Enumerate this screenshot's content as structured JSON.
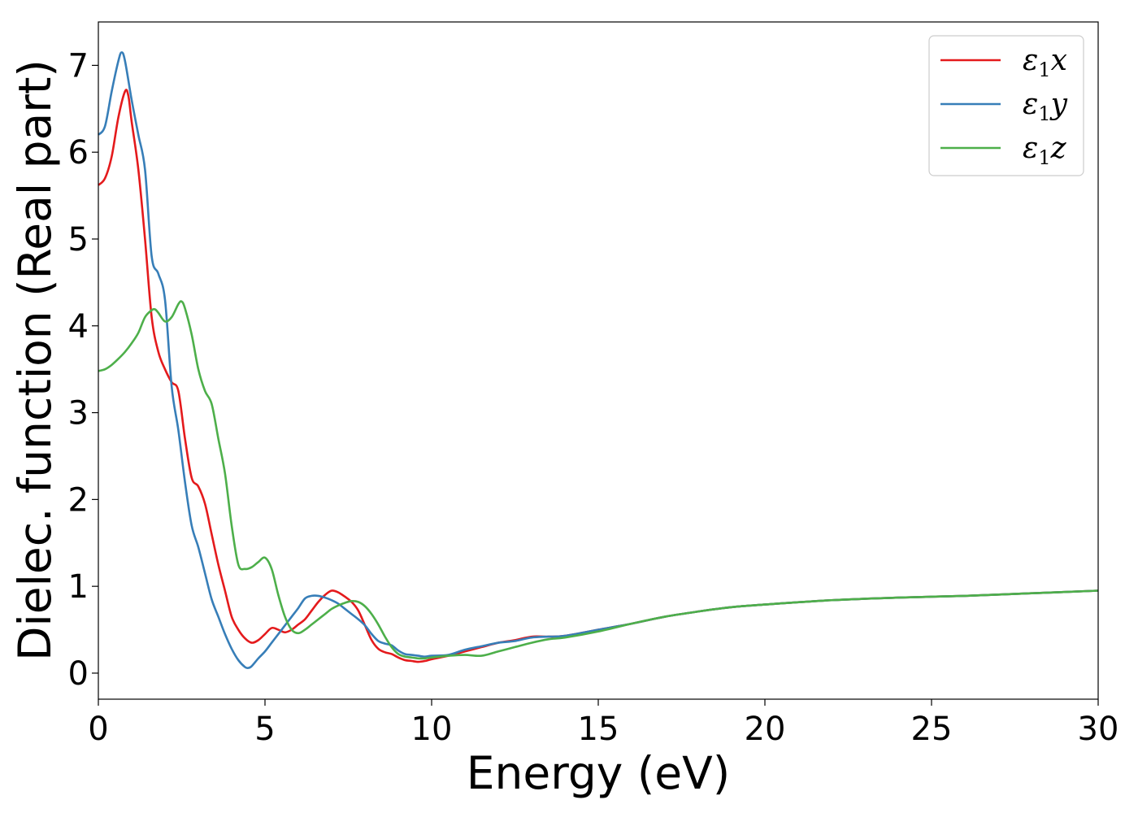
{
  "chart_data": {
    "type": "line",
    "title": "",
    "xlabel": "Energy (eV)",
    "ylabel": "Dielec. function (Real part)",
    "xlim": [
      0,
      30
    ],
    "ylim": [
      -0.3,
      7.5
    ],
    "xticks": [
      0,
      5,
      10,
      15,
      20,
      25,
      30
    ],
    "xtick_labels": [
      "0",
      "5",
      "10",
      "15",
      "20",
      "25",
      "30"
    ],
    "yticks": [
      0,
      1,
      2,
      3,
      4,
      5,
      6,
      7
    ],
    "ytick_labels": [
      "0",
      "1",
      "2",
      "3",
      "4",
      "5",
      "6",
      "7"
    ],
    "grid": false,
    "legend_position": "top-right",
    "series": [
      {
        "name": "ε1x",
        "symbol": "ε",
        "sub": "1",
        "axis": "x",
        "color": "#e41a1c",
        "x": [
          0,
          0.2,
          0.4,
          0.6,
          0.8,
          0.9,
          1.0,
          1.2,
          1.4,
          1.6,
          1.8,
          2.0,
          2.2,
          2.4,
          2.6,
          2.8,
          3.0,
          3.2,
          3.4,
          3.6,
          3.8,
          4.0,
          4.2,
          4.4,
          4.6,
          4.8,
          5.0,
          5.2,
          5.4,
          5.6,
          5.8,
          6.0,
          6.2,
          6.4,
          6.6,
          6.8,
          7.0,
          7.2,
          7.4,
          7.6,
          7.8,
          8.0,
          8.2,
          8.4,
          8.6,
          8.8,
          9.0,
          9.2,
          9.4,
          9.6,
          9.8,
          10,
          10.5,
          11,
          11.5,
          12,
          12.5,
          13,
          13.5,
          14,
          15,
          16,
          17,
          18,
          19,
          20,
          22,
          24,
          26,
          28,
          30
        ],
        "y": [
          5.62,
          5.7,
          5.95,
          6.4,
          6.7,
          6.65,
          6.35,
          5.8,
          5.0,
          4.1,
          3.7,
          3.5,
          3.35,
          3.25,
          2.7,
          2.25,
          2.15,
          1.95,
          1.6,
          1.25,
          0.95,
          0.65,
          0.5,
          0.4,
          0.35,
          0.38,
          0.45,
          0.52,
          0.5,
          0.47,
          0.5,
          0.56,
          0.62,
          0.72,
          0.82,
          0.9,
          0.95,
          0.93,
          0.88,
          0.82,
          0.72,
          0.55,
          0.38,
          0.28,
          0.24,
          0.22,
          0.18,
          0.15,
          0.14,
          0.13,
          0.14,
          0.16,
          0.2,
          0.25,
          0.3,
          0.35,
          0.38,
          0.42,
          0.42,
          0.43,
          0.5,
          0.57,
          0.65,
          0.71,
          0.76,
          0.79,
          0.84,
          0.87,
          0.89,
          0.92,
          0.95
        ]
      },
      {
        "name": "ε1y",
        "symbol": "ε",
        "sub": "1",
        "axis": "y",
        "color": "#377eb8",
        "x": [
          0,
          0.2,
          0.4,
          0.6,
          0.7,
          0.8,
          1.0,
          1.2,
          1.4,
          1.6,
          1.8,
          2.0,
          2.2,
          2.4,
          2.6,
          2.8,
          3.0,
          3.2,
          3.4,
          3.6,
          3.8,
          4.0,
          4.2,
          4.4,
          4.5,
          4.6,
          4.8,
          5.0,
          5.2,
          5.4,
          5.6,
          5.8,
          6.0,
          6.2,
          6.4,
          6.6,
          6.8,
          7.0,
          7.2,
          7.4,
          7.6,
          7.8,
          8.0,
          8.2,
          8.4,
          8.6,
          8.8,
          9.0,
          9.2,
          9.4,
          9.6,
          9.8,
          10,
          10.5,
          11,
          11.5,
          12,
          12.5,
          13,
          13.5,
          14,
          15,
          16,
          17,
          18,
          19,
          20,
          22,
          24,
          26,
          28,
          30
        ],
        "y": [
          6.2,
          6.3,
          6.7,
          7.05,
          7.15,
          7.05,
          6.6,
          6.2,
          5.8,
          4.8,
          4.6,
          4.3,
          3.3,
          2.8,
          2.2,
          1.7,
          1.45,
          1.15,
          0.85,
          0.65,
          0.45,
          0.28,
          0.15,
          0.07,
          0.06,
          0.08,
          0.17,
          0.25,
          0.35,
          0.45,
          0.55,
          0.65,
          0.75,
          0.86,
          0.89,
          0.89,
          0.87,
          0.84,
          0.8,
          0.74,
          0.68,
          0.62,
          0.55,
          0.45,
          0.37,
          0.34,
          0.32,
          0.26,
          0.22,
          0.21,
          0.2,
          0.19,
          0.2,
          0.21,
          0.27,
          0.31,
          0.35,
          0.37,
          0.41,
          0.42,
          0.43,
          0.5,
          0.57,
          0.65,
          0.71,
          0.76,
          0.79,
          0.84,
          0.87,
          0.89,
          0.92,
          0.95
        ]
      },
      {
        "name": "ε1z",
        "symbol": "ε",
        "sub": "1",
        "axis": "z",
        "color": "#4daf4a",
        "x": [
          0,
          0.2,
          0.4,
          0.6,
          0.8,
          1.0,
          1.2,
          1.4,
          1.6,
          1.7,
          1.8,
          2.0,
          2.2,
          2.4,
          2.5,
          2.6,
          2.8,
          3.0,
          3.2,
          3.4,
          3.6,
          3.8,
          4.0,
          4.2,
          4.4,
          4.6,
          4.8,
          5.0,
          5.2,
          5.4,
          5.6,
          5.8,
          6.0,
          6.2,
          6.4,
          6.6,
          6.8,
          7.0,
          7.2,
          7.4,
          7.6,
          7.8,
          8.0,
          8.2,
          8.4,
          8.6,
          8.8,
          9.0,
          9.2,
          9.4,
          9.6,
          9.8,
          10,
          10.5,
          11,
          11.5,
          12,
          12.5,
          13,
          13.5,
          14,
          15,
          16,
          17,
          18,
          19,
          20,
          22,
          24,
          26,
          28,
          30
        ],
        "y": [
          3.48,
          3.5,
          3.55,
          3.62,
          3.7,
          3.8,
          3.92,
          4.1,
          4.18,
          4.19,
          4.15,
          4.05,
          4.1,
          4.25,
          4.28,
          4.2,
          3.9,
          3.5,
          3.25,
          3.1,
          2.7,
          2.3,
          1.7,
          1.25,
          1.2,
          1.22,
          1.28,
          1.33,
          1.2,
          0.9,
          0.65,
          0.5,
          0.46,
          0.5,
          0.56,
          0.62,
          0.68,
          0.74,
          0.78,
          0.81,
          0.83,
          0.82,
          0.77,
          0.68,
          0.56,
          0.42,
          0.3,
          0.22,
          0.19,
          0.18,
          0.17,
          0.17,
          0.18,
          0.2,
          0.21,
          0.2,
          0.25,
          0.3,
          0.35,
          0.39,
          0.41,
          0.48,
          0.57,
          0.65,
          0.71,
          0.76,
          0.79,
          0.84,
          0.87,
          0.89,
          0.92,
          0.95
        ]
      }
    ]
  }
}
